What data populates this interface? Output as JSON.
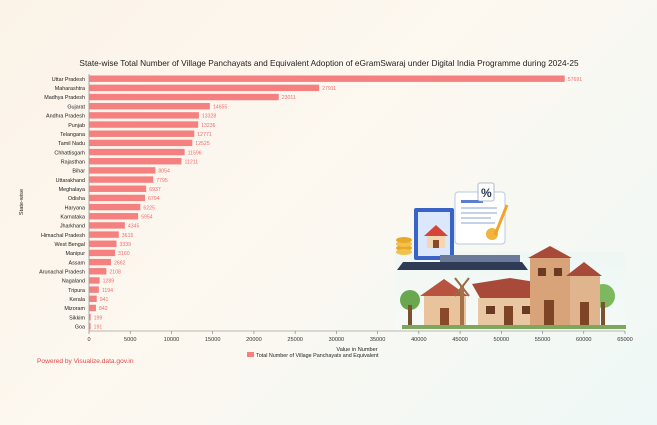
{
  "chart_data": {
    "type": "bar",
    "orientation": "horizontal",
    "title": "State-wise Total Number of Village Panchayats and Equivalent Adoption of eGramSwaraj under Digital India Programme during 2024-25",
    "xlabel": "Value in Number",
    "ylabel": "State-wise",
    "xlim": [
      0,
      65000
    ],
    "xticks": [
      0,
      5000,
      10000,
      15000,
      20000,
      25000,
      30000,
      35000,
      40000,
      45000,
      50000,
      55000,
      60000,
      65000
    ],
    "categories": [
      "Uttar Pradesh",
      "Maharashtra",
      "Madhya Pradesh",
      "Gujarat",
      "Andhra Pradesh",
      "Punjab",
      "Telangana",
      "Tamil Nadu",
      "Chhattisgarh",
      "Rajasthan",
      "Bihar",
      "Uttarakhand",
      "Meghalaya",
      "Odisha",
      "Haryana",
      "Karnataka",
      "Jharkhand",
      "Himachal Pradesh",
      "West Bengal",
      "Manipur",
      "Assam",
      "Arunachal Pradesh",
      "Nagaland",
      "Tripura",
      "Kerala",
      "Mizoram",
      "Sikkim",
      "Goa"
    ],
    "series": [
      {
        "name": "Total Number of Village Panchayats and Equivalent",
        "values": [
          57691,
          27911,
          23011,
          14655,
          13328,
          13236,
          12771,
          12525,
          11596,
          11211,
          8054,
          7795,
          6937,
          6794,
          6225,
          5954,
          4345,
          3615,
          3339,
          3160,
          2662,
          2108,
          1289,
          1194,
          941,
          842,
          199,
          191
        ]
      }
    ],
    "legend_position": "bottom-center",
    "grid": false,
    "bar_color": "#f48080"
  },
  "footer": {
    "powered_by": "Powered by Visualize.data.gov.in"
  }
}
